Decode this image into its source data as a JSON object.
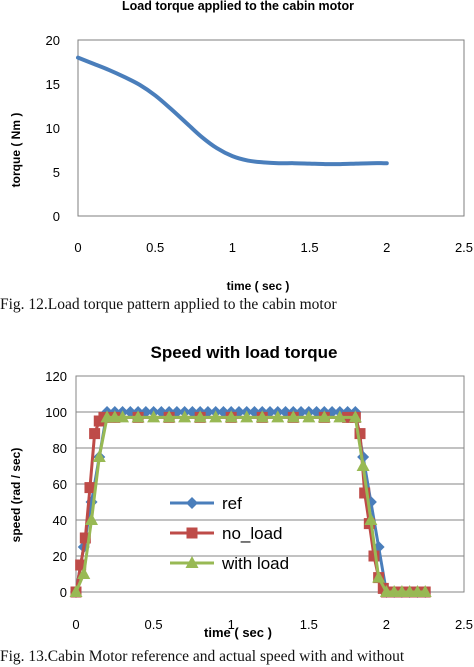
{
  "chart_data": [
    {
      "type": "line",
      "title": "Load torque applied to the cabin motor",
      "xlabel": "time ( sec )",
      "ylabel": "torque ( Nm )",
      "xlim": [
        0,
        2.5
      ],
      "ylim": [
        0,
        20
      ],
      "x_ticks": [
        "0",
        "0.5",
        "1",
        "1.5",
        "2",
        "2.5"
      ],
      "y_ticks": [
        "0",
        "5",
        "10",
        "15",
        "20"
      ],
      "grid": false,
      "series": [
        {
          "color": "#4a7ebb",
          "x": [
            0,
            0.1,
            0.2,
            0.3,
            0.4,
            0.5,
            0.6,
            0.7,
            0.8,
            0.9,
            1.0,
            1.1,
            1.2,
            1.3,
            1.4,
            1.5,
            1.6,
            1.7,
            1.8,
            1.9,
            2.0
          ],
          "y": [
            18,
            17.3,
            16.6,
            15.8,
            14.9,
            13.7,
            12.2,
            10.6,
            9.0,
            7.7,
            6.8,
            6.3,
            6.1,
            6.0,
            6.0,
            5.95,
            5.9,
            5.9,
            5.95,
            6.0,
            6.0
          ]
        }
      ]
    },
    {
      "type": "line",
      "title": "Speed with load torque",
      "xlabel": "time ( sec )",
      "ylabel": "speed (rad / sec)",
      "xlim": [
        0,
        2.5
      ],
      "ylim": [
        0,
        120
      ],
      "x_ticks": [
        "0",
        "0.5",
        "1",
        "1.5",
        "2",
        "2.5"
      ],
      "y_ticks": [
        "0",
        "20",
        "40",
        "60",
        "80",
        "100",
        "120"
      ],
      "grid": true,
      "legend_position": "center-left",
      "series": [
        {
          "name": "ref",
          "color": "#4a7ebb",
          "marker": "diamond",
          "x": [
            0,
            0.05,
            0.1,
            0.15,
            0.2,
            0.25,
            0.3,
            0.35,
            0.4,
            0.45,
            0.5,
            0.55,
            0.6,
            0.65,
            0.7,
            0.75,
            0.8,
            0.85,
            0.9,
            0.95,
            1.0,
            1.05,
            1.1,
            1.15,
            1.2,
            1.25,
            1.3,
            1.35,
            1.4,
            1.45,
            1.5,
            1.55,
            1.6,
            1.65,
            1.7,
            1.75,
            1.8,
            1.85,
            1.9,
            1.95,
            2.0,
            2.05,
            2.1,
            2.15,
            2.2,
            2.25
          ],
          "y": [
            0,
            25,
            50,
            75,
            100,
            100,
            100,
            100,
            100,
            100,
            100,
            100,
            100,
            100,
            100,
            100,
            100,
            100,
            100,
            100,
            100,
            100,
            100,
            100,
            100,
            100,
            100,
            100,
            100,
            100,
            100,
            100,
            100,
            100,
            100,
            100,
            100,
            75,
            50,
            25,
            0,
            0,
            0,
            0,
            0,
            0
          ]
        },
        {
          "name": "no_load",
          "color": "#be4b48",
          "marker": "square",
          "x": [
            0,
            0.03,
            0.06,
            0.09,
            0.12,
            0.15,
            0.18,
            0.25,
            0.4,
            0.6,
            0.8,
            1.0,
            1.2,
            1.4,
            1.6,
            1.75,
            1.8,
            1.83,
            1.86,
            1.89,
            1.92,
            1.95,
            1.98,
            2.0,
            2.05,
            2.1,
            2.15,
            2.2,
            2.25
          ],
          "y": [
            0,
            15,
            30,
            58,
            88,
            95,
            97,
            97,
            97,
            97,
            97,
            97,
            97,
            97,
            97,
            97,
            97,
            88,
            55,
            38,
            20,
            8,
            2,
            0,
            0,
            0,
            0,
            0,
            0
          ]
        },
        {
          "name": "with load",
          "color": "#98b954",
          "marker": "triangle",
          "x": [
            0,
            0.05,
            0.1,
            0.15,
            0.2,
            0.25,
            0.3,
            0.4,
            0.5,
            0.6,
            0.7,
            0.8,
            0.9,
            1.0,
            1.1,
            1.2,
            1.3,
            1.4,
            1.5,
            1.6,
            1.7,
            1.8,
            1.85,
            1.9,
            1.95,
            2.0,
            2.05,
            2.1,
            2.15,
            2.2,
            2.25
          ],
          "y": [
            0,
            10,
            40,
            75,
            97,
            97,
            97,
            97,
            97,
            97,
            97,
            97,
            97,
            97,
            97,
            97,
            97,
            97,
            97,
            97,
            97,
            97,
            70,
            40,
            8,
            0,
            0,
            0,
            0,
            0,
            0
          ]
        }
      ]
    }
  ],
  "captions": {
    "fig12": "Fig. 12.Load torque pattern applied to the cabin motor",
    "fig13": "Fig. 13.Cabin Motor reference and actual speed with and without"
  }
}
